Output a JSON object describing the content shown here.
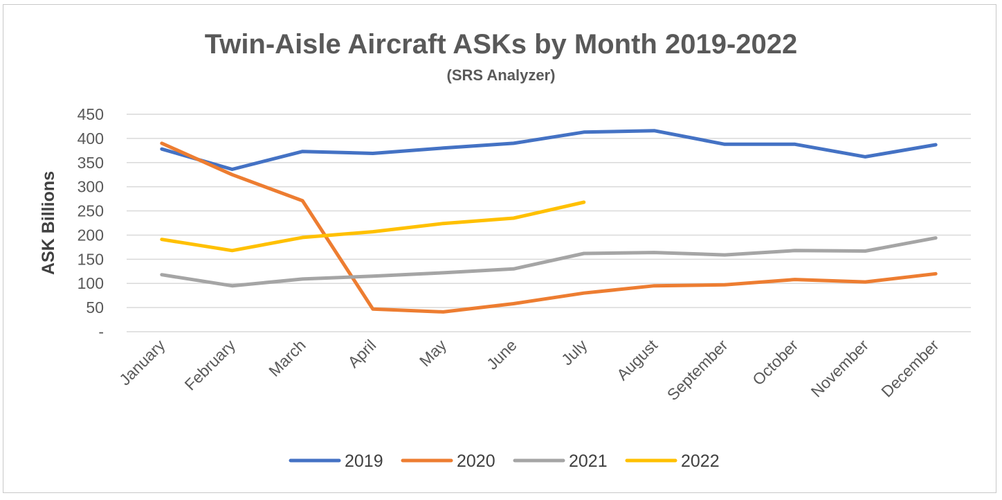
{
  "chart_data": {
    "type": "line",
    "title": "Twin-Aisle Aircraft ASKs by Month 2019-2022",
    "subtitle": "(SRS Analyzer)",
    "xlabel": "",
    "ylabel": "ASK Billions",
    "ylim": [
      0,
      450
    ],
    "ytick_labels": [
      "-",
      "50",
      "100",
      "150",
      "200",
      "250",
      "300",
      "350",
      "400",
      "450"
    ],
    "grid": true,
    "legend_position": "bottom",
    "categories": [
      "January",
      "February",
      "March",
      "April",
      "May",
      "June",
      "July",
      "August",
      "September",
      "October",
      "November",
      "December"
    ],
    "series": [
      {
        "name": "2019",
        "color": "#4472C4",
        "values": [
          378,
          336,
          373,
          369,
          380,
          390,
          413,
          416,
          388,
          388,
          362,
          387
        ]
      },
      {
        "name": "2020",
        "color": "#ED7D31",
        "values": [
          390,
          325,
          271,
          47,
          41,
          58,
          80,
          95,
          97,
          108,
          103,
          120
        ]
      },
      {
        "name": "2021",
        "color": "#A5A5A5",
        "values": [
          118,
          95,
          109,
          115,
          122,
          130,
          162,
          164,
          159,
          168,
          167,
          194
        ]
      },
      {
        "name": "2022",
        "color": "#FFC000",
        "values": [
          191,
          168,
          195,
          207,
          224,
          235,
          268,
          null,
          null,
          null,
          null,
          null
        ]
      }
    ]
  }
}
